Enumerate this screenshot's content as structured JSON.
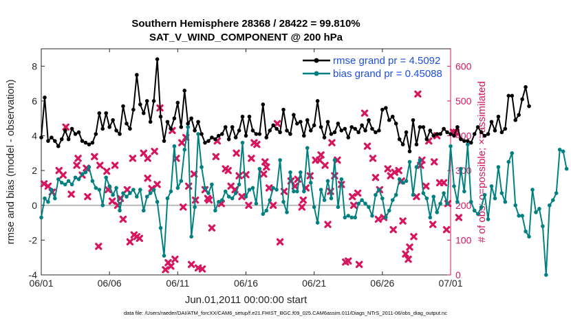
{
  "chart_data": {
    "type": "line",
    "title": "Southern Hemisphere 28368 / 28422 = 99.810%",
    "subtitle": "SAT_V_WIND_COMPONENT @ 200 hPa",
    "xlabel": "Jun.01,2011 00:00:00 start",
    "ylabel_left": "rmse and bias (model - observation)",
    "ylabel_right": "# of obs: o=possible; ×=assimilated",
    "xlim": [
      0,
      30
    ],
    "ylim_left": [
      -4,
      9
    ],
    "ylim_right": [
      0,
      650
    ],
    "x_ticks": [
      0,
      5,
      10,
      15,
      20,
      25,
      30
    ],
    "x_tick_labels": [
      "06/01",
      "06/06",
      "06/11",
      "06/16",
      "06/21",
      "06/26",
      "07/01"
    ],
    "y_ticks_left": [
      -4,
      -2,
      0,
      2,
      4,
      6,
      8
    ],
    "y_ticks_right": [
      0,
      100,
      200,
      300,
      400,
      500,
      600
    ],
    "grid": false,
    "legend_position": "top-right",
    "colors": {
      "rmse": "#000000",
      "bias": "#008080",
      "obs": "#d6155f",
      "zero_line": "#b8b8b8",
      "right_axis": "#d6155f",
      "legend_text": "#1f4fe0"
    },
    "series": [
      {
        "name": "rmse grand pr = 4.5092",
        "axis": "left",
        "x0": 0,
        "dx": 0.25,
        "values": [
          3.9,
          6.2,
          3.7,
          3.9,
          3.7,
          3.4,
          3.8,
          4.3,
          3.8,
          4.4,
          4.1,
          4.2,
          3.7,
          3.6,
          3.5,
          3.6,
          4.1,
          5.3,
          4.4,
          5.3,
          4.5,
          4.9,
          4.3,
          4.1,
          5.7,
          4.7,
          4.4,
          5.5,
          7.5,
          5.8,
          5.3,
          6.0,
          4.8,
          6.0,
          8.4,
          5.1,
          3.7,
          4.8,
          4.4,
          5.0,
          5.9,
          4.5,
          6.6,
          4.7,
          5.0,
          4.3,
          4.8,
          4.1,
          3.6,
          3.7,
          3.9,
          3.8,
          4.0,
          4.1,
          4.5,
          3.8,
          4.5,
          3.9,
          4.3,
          5.1,
          4.0,
          5.1,
          4.3,
          4.1,
          4.1,
          5.8,
          3.9,
          4.3,
          4.6,
          4.4,
          4.2,
          5.5,
          4.3,
          4.1,
          5.2,
          4.7,
          4.8,
          4.0,
          4.9,
          4.3,
          4.6,
          6.0,
          4.5,
          3.9,
          4.8,
          4.1,
          4.2,
          4.7,
          4.3,
          4.4,
          3.9,
          4.5,
          4.4,
          4.2,
          4.6,
          4.3,
          4.9,
          4.4,
          4.2,
          4.3,
          5.5,
          5.6,
          4.9,
          5.1,
          4.7,
          3.8,
          3.5,
          4.2,
          3.1,
          4.9,
          3.5,
          4.5,
          4.5,
          3.8,
          4.3,
          4.0,
          4.1,
          4.1,
          4.4,
          4.2,
          4.1,
          4.0,
          4.5,
          3.8,
          3.7,
          3.7,
          3.6,
          4.1,
          4.5,
          4.2,
          4.0,
          4.1,
          4.8,
          4.3,
          5.1,
          4.2,
          4.4,
          6.3,
          6.3,
          4.9,
          5.2,
          6.1,
          6.8,
          5.7
        ]
      },
      {
        "name": "bias grand pr = 0.45088",
        "axis": "left",
        "x0": 0,
        "dx": 0.25,
        "values": [
          -0.7,
          0.4,
          0.2,
          0.9,
          0.4,
          1.5,
          1.3,
          1.2,
          1.4,
          1.2,
          1.6,
          1.5,
          1.8,
          1.9,
          2.2,
          1.4,
          1.0,
          0.9,
          0.0,
          1.6,
          1.1,
          0.6,
          1.0,
          -0.3,
          0.7,
          0.5,
          0.7,
          0.9,
          0.5,
          0.9,
          -0.3,
          0.5,
          0.7,
          0.9,
          0.2,
          -1.3,
          -2.9,
          0.4,
          0.8,
          3.4,
          1.0,
          1.4,
          3.2,
          4.5,
          -1.8,
          -0.1,
          4.1,
          2.2,
          1.0,
          0.7,
          1.2,
          -0.3,
          0.2,
          0.3,
          0.8,
          0.5,
          0.4,
          0.7,
          1.2,
          3.6,
          0.5,
          0.9,
          1.0,
          0.1,
          2.1,
          -0.5,
          -0.3,
          0.3,
          1.0,
          0.9,
          2.6,
          0.2,
          -0.4,
          1.9,
          0.8,
          0.8,
          1.9,
          0.8,
          3.3,
          1.3,
          -0.1,
          -1.0,
          0.9,
          0.3,
          1.4,
          0.4,
          2.6,
          -0.1,
          1.5,
          -0.7,
          -0.6,
          -0.7,
          -0.7,
          0.1,
          0.3,
          0.1,
          -0.1,
          -0.6,
          0.6,
          0.9,
          0.4,
          -0.7,
          -0.3,
          0.3,
          0.6,
          1.5,
          1.3,
          1.4,
          2.5,
          0.6,
          2.2,
          2.6,
          0.7,
          0.4,
          -0.7,
          0.5,
          -0.4,
          0.1,
          0.7,
          0.1,
          3.4,
          1.1,
          0.2,
          2.1,
          0.8,
          3.5,
          0.2,
          -0.3,
          -0.5,
          -0.1,
          0.6,
          -0.8,
          1.1,
          0.4,
          2.2,
          0.7,
          0.2,
          2.5,
          3.0,
          0.0,
          -0.6,
          -0.6,
          -1.5,
          -1.8,
          0.9,
          -0.4,
          -0.2,
          -1.2,
          -4.0,
          0.0,
          0.3,
          0.7,
          3.2,
          3.1,
          2.1
        ]
      },
      {
        "name": "",
        "axis": "right",
        "marker": "x",
        "points": [
          [
            0.2,
            262
          ],
          [
            0.5,
            255
          ],
          [
            0.8,
            238
          ],
          [
            1.3,
            300
          ],
          [
            1.6,
            287
          ],
          [
            1.8,
            425
          ],
          [
            2.2,
            232
          ],
          [
            2.6,
            315
          ],
          [
            2.7,
            335
          ],
          [
            3.0,
            287
          ],
          [
            3.3,
            307
          ],
          [
            3.4,
            225
          ],
          [
            3.9,
            340
          ],
          [
            4.2,
            82
          ],
          [
            4.3,
            315
          ],
          [
            4.8,
            298
          ],
          [
            4.9,
            245
          ],
          [
            5.2,
            212
          ],
          [
            5.4,
            315
          ],
          [
            5.6,
            200
          ],
          [
            5.8,
            220
          ],
          [
            6.0,
            160
          ],
          [
            6.3,
            245
          ],
          [
            6.5,
            95
          ],
          [
            6.7,
            335
          ],
          [
            6.8,
            115
          ],
          [
            7.0,
            110
          ],
          [
            7.2,
            105
          ],
          [
            7.5,
            350
          ],
          [
            7.8,
            335
          ],
          [
            7.8,
            278
          ],
          [
            8.1,
            248
          ],
          [
            8.3,
            355
          ],
          [
            8.5,
            260
          ],
          [
            8.7,
            480
          ],
          [
            9.1,
            15
          ],
          [
            9.3,
            35
          ],
          [
            9.5,
            25
          ],
          [
            9.6,
            415
          ],
          [
            9.8,
            45
          ],
          [
            9.9,
            335
          ],
          [
            10.3,
            380
          ],
          [
            10.4,
            195
          ],
          [
            10.6,
            395
          ],
          [
            10.8,
            255
          ],
          [
            11.0,
            30
          ],
          [
            11.2,
            290
          ],
          [
            11.3,
            215
          ],
          [
            11.5,
            20
          ],
          [
            11.8,
            17
          ],
          [
            12.0,
            245
          ],
          [
            12.2,
            220
          ],
          [
            12.3,
            215
          ],
          [
            12.5,
            135
          ],
          [
            12.8,
            340
          ],
          [
            12.9,
            385
          ],
          [
            13.2,
            205
          ],
          [
            13.5,
            305
          ],
          [
            13.7,
            300
          ],
          [
            13.9,
            255
          ],
          [
            14.2,
            245
          ],
          [
            14.3,
            350
          ],
          [
            14.5,
            285
          ],
          [
            14.7,
            225
          ],
          [
            15.0,
            288
          ],
          [
            15.2,
            200
          ],
          [
            15.4,
            335
          ],
          [
            15.6,
            380
          ],
          [
            15.8,
            375
          ],
          [
            16.3,
            290
          ],
          [
            16.4,
            325
          ],
          [
            16.5,
            310
          ],
          [
            16.7,
            250
          ],
          [
            17.0,
            200
          ],
          [
            17.3,
            435
          ],
          [
            17.5,
            95
          ],
          [
            17.8,
            240
          ],
          [
            18.3,
            270
          ],
          [
            18.6,
            255
          ],
          [
            18.8,
            275
          ],
          [
            19.1,
            195
          ],
          [
            19.2,
            215
          ],
          [
            19.4,
            250
          ],
          [
            19.7,
            285
          ],
          [
            20.1,
            330
          ],
          [
            20.4,
            330
          ],
          [
            20.5,
            345
          ],
          [
            20.8,
            315
          ],
          [
            21.0,
            145
          ],
          [
            21.2,
            240
          ],
          [
            21.3,
            380
          ],
          [
            21.5,
            285
          ],
          [
            21.7,
            330
          ],
          [
            22.0,
            260
          ],
          [
            22.3,
            37
          ],
          [
            22.5,
            40
          ],
          [
            22.8,
            225
          ],
          [
            22.9,
            200
          ],
          [
            23.2,
            235
          ],
          [
            23.3,
            30
          ],
          [
            23.7,
            465
          ],
          [
            23.9,
            370
          ],
          [
            24.3,
            335
          ],
          [
            24.5,
            280
          ],
          [
            24.7,
            160
          ],
          [
            24.8,
            245
          ],
          [
            25.1,
            165
          ],
          [
            25.4,
            305
          ],
          [
            25.6,
            285
          ],
          [
            25.8,
            130
          ],
          [
            25.9,
            295
          ],
          [
            26.2,
            300
          ],
          [
            26.4,
            270
          ],
          [
            26.5,
            155
          ],
          [
            26.7,
            60
          ],
          [
            26.9,
            45
          ],
          [
            27.0,
            80
          ],
          [
            27.3,
            110
          ],
          [
            27.5,
            225
          ],
          [
            27.6,
            520
          ],
          [
            27.8,
            315
          ],
          [
            27.9,
            330
          ],
          [
            28.2,
            255
          ],
          [
            28.4,
            385
          ],
          [
            28.7,
            145
          ],
          [
            28.8,
            325
          ],
          [
            29.0,
            400
          ],
          [
            29.2,
            265
          ],
          [
            29.5,
            265
          ],
          [
            29.7,
            130
          ],
          [
            29.8,
            205
          ],
          [
            30.2,
            410
          ],
          [
            30.4,
            410
          ],
          [
            30.6,
            165
          ]
        ]
      }
    ]
  },
  "footer": "data file: /Users/raeder/DAI/ATM_forcXX/CAM6_setup/f.e21.FHIST_BGC.f09_025.CAM6assim.011/Diags_NTrS_2011-06/obs_diag_output.nc"
}
